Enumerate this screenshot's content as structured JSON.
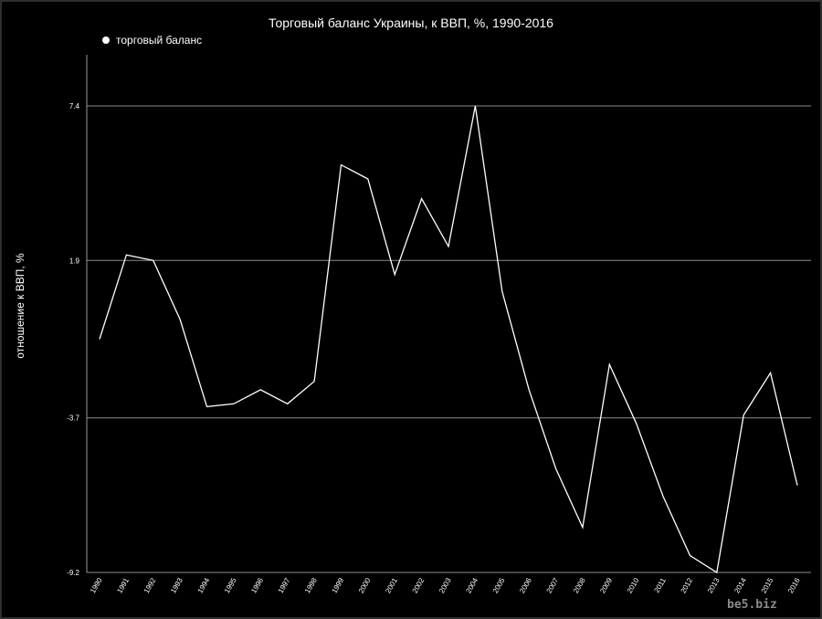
{
  "chart_data": {
    "type": "line",
    "title": "Торговый баланс Украины, к ВВП, %, 1990-2016",
    "xlabel": "",
    "ylabel": "отношение к ВВП, %",
    "legend_position": "top-left",
    "grid": "horizontal",
    "ylim": [
      -9.2,
      7.4
    ],
    "yticks": [
      "7.4",
      "1.9",
      "-3.7",
      "-9.2"
    ],
    "x": [
      "1990",
      "1991",
      "1992",
      "1993",
      "1994",
      "1995",
      "1996",
      "1997",
      "1998",
      "1999",
      "2000",
      "2001",
      "2002",
      "2003",
      "2004",
      "2005",
      "2006",
      "2007",
      "2008",
      "2009",
      "2010",
      "2011",
      "2012",
      "2013",
      "2014",
      "2015",
      "2016"
    ],
    "series": [
      {
        "name": "торговый баланс",
        "color": "#ffffff",
        "values": [
          -0.9,
          2.1,
          1.9,
          -0.2,
          -3.3,
          -3.2,
          -2.7,
          -3.2,
          -2.4,
          5.3,
          4.8,
          1.4,
          4.1,
          2.4,
          7.4,
          0.8,
          -2.7,
          -5.5,
          -7.6,
          -1.8,
          -3.9,
          -6.5,
          -8.6,
          -9.2,
          -3.6,
          -2.1,
          -6.1
        ]
      }
    ]
  },
  "watermark": "be5.biz",
  "colors": {
    "background": "#000000",
    "line": "#ffffff",
    "grid": "#8c8c8c",
    "axis": "#9a9a9a"
  }
}
